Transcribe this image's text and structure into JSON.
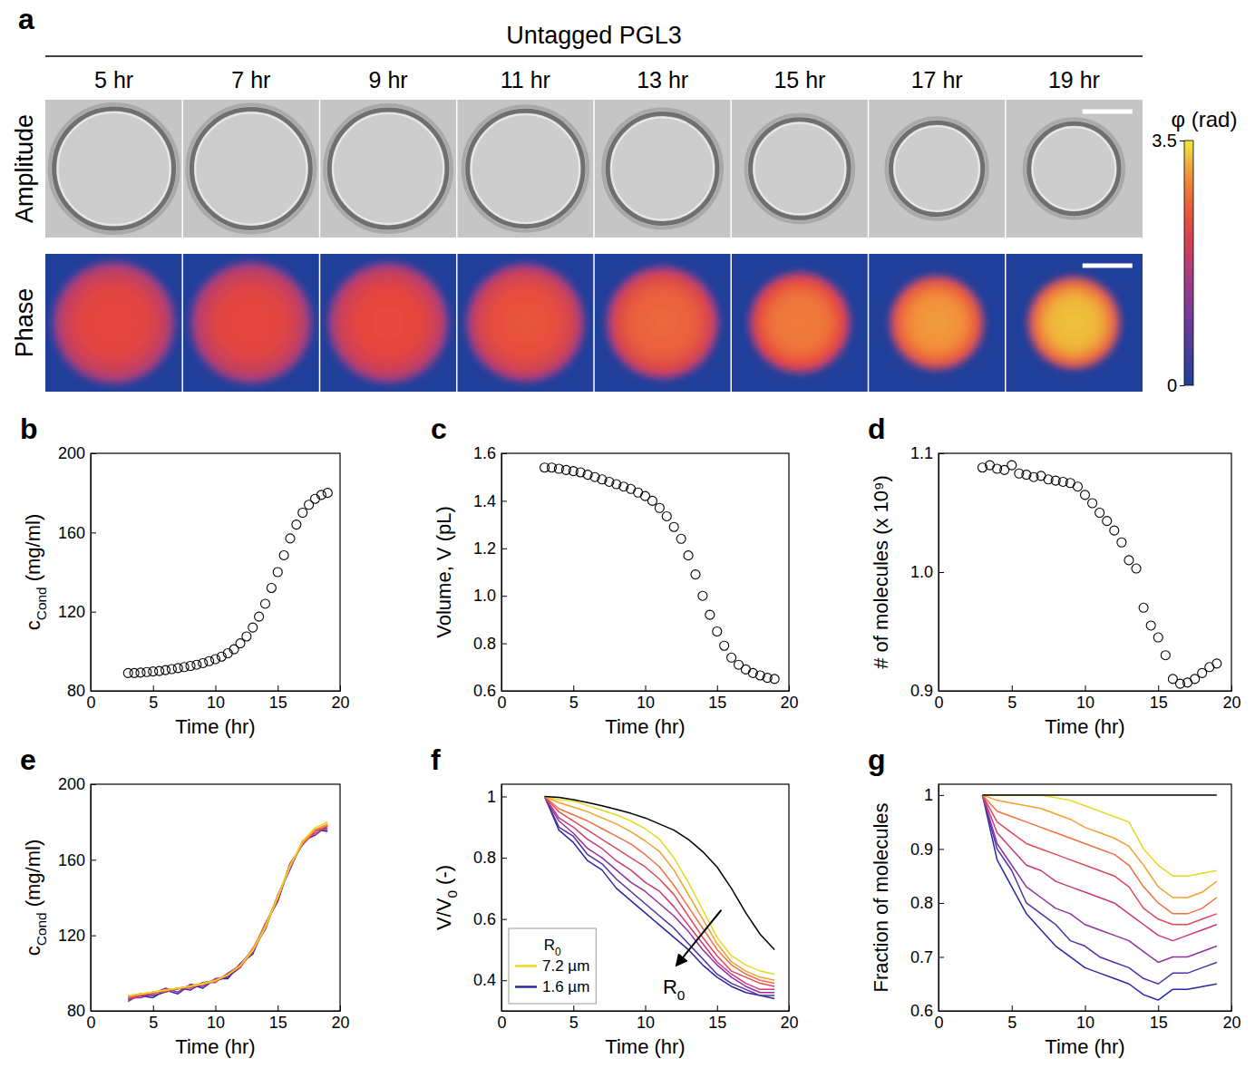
{
  "panel_a": {
    "panel": "a",
    "title": "Untagged PGL3",
    "rows": [
      "Amplitude",
      "Phase"
    ],
    "frames": [
      {
        "time": 5,
        "label": "5 hr",
        "phase_max": 2.3
      },
      {
        "time": 7,
        "label": "7 hr",
        "phase_max": 2.3
      },
      {
        "time": 9,
        "label": "9 hr",
        "phase_max": 2.35
      },
      {
        "time": 11,
        "label": "11 hr",
        "phase_max": 2.45
      },
      {
        "time": 13,
        "label": "13 hr",
        "phase_max": 2.65
      },
      {
        "time": 15,
        "label": "15 hr",
        "phase_max": 2.85
      },
      {
        "time": 17,
        "label": "17 hr",
        "phase_max": 3.1
      },
      {
        "time": 19,
        "label": "19 hr",
        "phase_max": 3.3
      }
    ],
    "colorbar": {
      "label": "φ (rad)",
      "range": [
        0,
        3.5
      ],
      "ticks": [
        0,
        3.5
      ]
    }
  },
  "chart_data": [
    {
      "panel": "b",
      "type": "scatter",
      "marker": "circle",
      "color": "#000000",
      "xlabel": "Time (hr)",
      "ylabel": [
        {
          "text": "c"
        },
        {
          "text": "Cond",
          "sub": true
        },
        {
          "text": " (mg/ml)"
        }
      ],
      "xlim": [
        0,
        20
      ],
      "xticks": [
        0,
        5,
        10,
        15,
        20
      ],
      "ylim": [
        80,
        200
      ],
      "yticks": [
        80,
        120,
        160,
        200
      ],
      "x": [
        3,
        3.5,
        4,
        4.5,
        5,
        5.5,
        6,
        6.5,
        7,
        7.5,
        8,
        8.5,
        9,
        9.5,
        10,
        10.5,
        11,
        11.5,
        12,
        12.5,
        13,
        13.5,
        14,
        14.5,
        15,
        15.5,
        16,
        16.5,
        17,
        17.5,
        18,
        18.5,
        19
      ],
      "values": [
        89,
        89,
        89.2,
        89.5,
        89.8,
        90,
        90.5,
        91,
        91.5,
        92,
        92.6,
        93.2,
        94,
        95,
        96,
        97.3,
        99,
        101,
        104,
        107.5,
        112,
        117.5,
        124,
        132,
        140,
        148.5,
        157,
        164,
        170,
        174,
        177,
        179,
        180
      ]
    },
    {
      "panel": "c",
      "type": "scatter",
      "marker": "circle",
      "color": "#000000",
      "xlabel": "Time (hr)",
      "ylabel": "Volume, V (pL)",
      "xlim": [
        0,
        20
      ],
      "xticks": [
        0,
        5,
        10,
        15,
        20
      ],
      "ylim": [
        0.6,
        1.6
      ],
      "yticks": [
        0.6,
        0.8,
        {
          "value": 1,
          "label": "1.0"
        },
        1.2,
        1.4,
        1.6
      ],
      "x": [
        3,
        3.5,
        4,
        4.5,
        5,
        5.5,
        6,
        6.5,
        7,
        7.5,
        8,
        8.5,
        9,
        9.5,
        10,
        10.5,
        11,
        11.5,
        12,
        12.5,
        13,
        13.5,
        14,
        14.5,
        15,
        15.5,
        16,
        16.5,
        17,
        17.5,
        18,
        18.5,
        19
      ],
      "values": [
        1.54,
        1.54,
        1.535,
        1.53,
        1.525,
        1.52,
        1.51,
        1.5,
        1.49,
        1.48,
        1.47,
        1.46,
        1.45,
        1.435,
        1.42,
        1.4,
        1.37,
        1.335,
        1.29,
        1.24,
        1.17,
        1.09,
        1.0,
        0.92,
        0.85,
        0.79,
        0.74,
        0.71,
        0.69,
        0.675,
        0.665,
        0.655,
        0.65
      ]
    },
    {
      "panel": "d",
      "type": "scatter",
      "marker": "circle",
      "color": "#000000",
      "xlabel": "Time (hr)",
      "ylabel": "# of molecules (x 10⁹)",
      "xlim": [
        0,
        20
      ],
      "xticks": [
        0,
        5,
        10,
        15,
        20
      ],
      "ylim": [
        0.9,
        1.1
      ],
      "yticks": [
        0.9,
        {
          "value": 1,
          "label": "1.0"
        },
        1.1
      ],
      "x": [
        3,
        3.5,
        4,
        4.5,
        5,
        5.5,
        6,
        6.5,
        7,
        7.5,
        8,
        8.5,
        9,
        9.5,
        10,
        10.5,
        11,
        11.5,
        12,
        12.5,
        13,
        13.5,
        14,
        14.5,
        15,
        15.5,
        16,
        16.5,
        17,
        17.5,
        18,
        18.5,
        19
      ],
      "values": [
        1.088,
        1.09,
        1.087,
        1.086,
        1.09,
        1.083,
        1.082,
        1.08,
        1.081,
        1.078,
        1.077,
        1.076,
        1.075,
        1.072,
        1.065,
        1.058,
        1.05,
        1.043,
        1.035,
        1.025,
        1.01,
        1.003,
        0.97,
        0.955,
        0.945,
        0.93,
        0.91,
        0.906,
        0.907,
        0.91,
        0.915,
        0.92,
        0.923
      ]
    },
    {
      "panel": "e",
      "type": "line",
      "xlabel": "Time (hr)",
      "ylabel": [
        {
          "text": "c"
        },
        {
          "text": "Cond",
          "sub": true
        },
        {
          "text": " (mg/ml)"
        }
      ],
      "xlim": [
        0,
        20
      ],
      "xticks": [
        0,
        5,
        10,
        15,
        20
      ],
      "ylim": [
        80,
        200
      ],
      "yticks": [
        80,
        120,
        160,
        200
      ],
      "x": [
        3,
        4,
        5,
        6,
        7,
        8,
        9,
        10,
        11,
        12,
        13,
        14,
        15,
        16,
        17,
        18,
        19
      ],
      "series": [
        {
          "color": "#2828a0",
          "values": [
            86,
            88,
            87,
            91,
            89,
            94,
            92,
            97,
            97,
            105,
            110,
            126,
            138,
            158,
            168,
            176,
            175
          ]
        },
        {
          "color": "#5030a8",
          "values": [
            85,
            89,
            88,
            90,
            92,
            91,
            95,
            96,
            98,
            103,
            113,
            123,
            141,
            155,
            170,
            173,
            178
          ]
        },
        {
          "color": "#9030a0",
          "values": [
            87,
            87,
            89,
            92,
            90,
            94,
            93,
            97,
            98,
            105,
            112,
            126,
            138,
            158,
            168,
            176,
            176
          ]
        },
        {
          "color": "#c83878",
          "values": [
            86,
            88,
            90,
            90,
            92,
            92,
            95,
            95,
            100,
            104,
            111,
            124,
            141,
            156,
            170,
            174,
            177
          ]
        },
        {
          "color": "#e04858",
          "values": [
            87,
            89,
            89,
            91,
            91.5,
            93.5,
            94,
            96,
            99.5,
            103,
            112,
            126,
            139,
            158,
            168,
            175,
            178
          ]
        },
        {
          "color": "#f07040",
          "values": [
            87,
            88.5,
            89.5,
            90.5,
            92,
            93,
            94.5,
            96.5,
            99,
            104,
            113,
            125,
            140,
            156,
            169,
            176,
            178
          ]
        },
        {
          "color": "#f4a030",
          "values": [
            88,
            89,
            90,
            91,
            92,
            93,
            94,
            96,
            99,
            104,
            112,
            125,
            141,
            157,
            169,
            176,
            179
          ]
        },
        {
          "color": "#e8d820",
          "values": [
            88,
            89,
            90,
            91,
            92,
            93,
            94.5,
            96,
            99,
            104,
            112,
            124,
            140,
            157,
            170,
            177,
            180
          ]
        }
      ]
    },
    {
      "panel": "f",
      "type": "line",
      "legend": "lower left",
      "legend_title": [
        {
          "text": "R"
        },
        {
          "text": "0",
          "sub": true
        }
      ],
      "annotations": [
        {
          "text": [
            {
              "text": "R"
            },
            {
              "text": "0",
              "sub": true
            }
          ]
        }
      ],
      "xlabel": "Time (hr)",
      "ylabel": [
        {
          "text": "V/V"
        },
        {
          "text": "0",
          "sub": true
        },
        {
          "text": " (-)"
        }
      ],
      "xlim": [
        0,
        20
      ],
      "xticks": [
        0,
        5,
        10,
        15,
        20
      ],
      "ylim": [
        0.3,
        1.04
      ],
      "yticks": [
        0.4,
        0.6,
        0.8,
        1
      ],
      "x": [
        3,
        4,
        5,
        6,
        7,
        8,
        9,
        10,
        11,
        12,
        13,
        14,
        15,
        16,
        17,
        18,
        19
      ],
      "series": [
        {
          "name": "1.6 µm",
          "color": "#2828a0",
          "values": [
            1,
            0.89,
            0.85,
            0.79,
            0.76,
            0.7,
            0.66,
            0.62,
            0.58,
            0.54,
            0.5,
            0.45,
            0.41,
            0.38,
            0.36,
            0.35,
            0.34
          ]
        },
        {
          "color": "#5030a8",
          "values": [
            1,
            0.9,
            0.87,
            0.81,
            0.78,
            0.73,
            0.69,
            0.65,
            0.61,
            0.57,
            0.52,
            0.47,
            0.42,
            0.39,
            0.37,
            0.35,
            0.35
          ]
        },
        {
          "color": "#9030a0",
          "values": [
            1,
            0.92,
            0.88,
            0.83,
            0.8,
            0.76,
            0.72,
            0.69,
            0.65,
            0.61,
            0.56,
            0.5,
            0.45,
            0.41,
            0.38,
            0.36,
            0.36
          ]
        },
        {
          "color": "#c83878",
          "values": [
            1,
            0.93,
            0.9,
            0.86,
            0.83,
            0.79,
            0.76,
            0.72,
            0.69,
            0.64,
            0.58,
            0.52,
            0.46,
            0.42,
            0.39,
            0.37,
            0.37
          ]
        },
        {
          "color": "#e04858",
          "values": [
            1,
            0.95,
            0.92,
            0.89,
            0.86,
            0.83,
            0.8,
            0.77,
            0.73,
            0.68,
            0.61,
            0.54,
            0.48,
            0.43,
            0.41,
            0.39,
            0.38
          ]
        },
        {
          "color": "#f07040",
          "values": [
            1,
            0.96,
            0.94,
            0.92,
            0.895,
            0.87,
            0.845,
            0.81,
            0.77,
            0.71,
            0.64,
            0.57,
            0.5,
            0.45,
            0.42,
            0.4,
            0.39
          ]
        },
        {
          "color": "#f4a030",
          "values": [
            1,
            0.98,
            0.965,
            0.95,
            0.93,
            0.91,
            0.885,
            0.855,
            0.82,
            0.76,
            0.68,
            0.6,
            0.52,
            0.46,
            0.43,
            0.41,
            0.4
          ]
        },
        {
          "name": "7.2 µm",
          "color": "#e8d820",
          "values": [
            1,
            0.99,
            0.985,
            0.97,
            0.955,
            0.94,
            0.92,
            0.895,
            0.86,
            0.8,
            0.72,
            0.63,
            0.54,
            0.48,
            0.45,
            0.43,
            0.42
          ]
        },
        {
          "color": "#000000",
          "values": [
            1,
            0.997,
            0.99,
            0.98,
            0.97,
            0.958,
            0.945,
            0.93,
            0.91,
            0.89,
            0.86,
            0.82,
            0.77,
            0.7,
            0.62,
            0.55,
            0.5
          ]
        }
      ]
    },
    {
      "panel": "g",
      "type": "line",
      "xlabel": "Time (hr)",
      "ylabel": "Fraction of molecules",
      "xlim": [
        0,
        20
      ],
      "xticks": [
        0,
        5,
        10,
        15,
        20
      ],
      "ylim": [
        0.6,
        1.02
      ],
      "yticks": [
        0.6,
        0.7,
        0.8,
        0.9,
        1
      ],
      "x": [
        3,
        4,
        5,
        6,
        7,
        8,
        9,
        10,
        11,
        12,
        13,
        14,
        15,
        16,
        17,
        18,
        19
      ],
      "series": [
        {
          "color": "#2828a0",
          "values": [
            1,
            0.88,
            0.83,
            0.78,
            0.75,
            0.72,
            0.7,
            0.68,
            0.67,
            0.66,
            0.65,
            0.63,
            0.62,
            0.64,
            0.64,
            0.645,
            0.65
          ]
        },
        {
          "color": "#5030a8",
          "values": [
            1,
            0.9,
            0.86,
            0.8,
            0.78,
            0.76,
            0.73,
            0.72,
            0.7,
            0.69,
            0.68,
            0.66,
            0.65,
            0.67,
            0.67,
            0.68,
            0.69
          ]
        },
        {
          "color": "#9030a0",
          "values": [
            1,
            0.91,
            0.87,
            0.83,
            0.81,
            0.79,
            0.78,
            0.76,
            0.75,
            0.74,
            0.73,
            0.71,
            0.69,
            0.7,
            0.7,
            0.71,
            0.72
          ]
        },
        {
          "color": "#c83878",
          "values": [
            1,
            0.93,
            0.9,
            0.87,
            0.86,
            0.84,
            0.83,
            0.82,
            0.81,
            0.8,
            0.78,
            0.76,
            0.74,
            0.73,
            0.74,
            0.75,
            0.76
          ]
        },
        {
          "color": "#e04858",
          "values": [
            1,
            0.95,
            0.93,
            0.91,
            0.9,
            0.89,
            0.88,
            0.87,
            0.86,
            0.85,
            0.83,
            0.79,
            0.77,
            0.76,
            0.76,
            0.77,
            0.78
          ]
        },
        {
          "color": "#f07040",
          "values": [
            1,
            0.97,
            0.96,
            0.95,
            0.94,
            0.93,
            0.92,
            0.91,
            0.9,
            0.89,
            0.87,
            0.83,
            0.8,
            0.78,
            0.78,
            0.79,
            0.81
          ]
        },
        {
          "color": "#f4a030",
          "values": [
            1,
            0.99,
            0.985,
            0.98,
            0.975,
            0.965,
            0.955,
            0.94,
            0.93,
            0.92,
            0.905,
            0.87,
            0.83,
            0.81,
            0.81,
            0.82,
            0.84
          ]
        },
        {
          "color": "#e8d820",
          "values": [
            1,
            1,
            1,
            1,
            1,
            0.995,
            0.99,
            0.98,
            0.97,
            0.96,
            0.95,
            0.9,
            0.87,
            0.85,
            0.85,
            0.855,
            0.86
          ]
        },
        {
          "color": "#000000",
          "values": [
            1,
            1,
            1,
            1,
            1,
            1,
            1,
            1,
            1,
            1,
            1,
            1,
            1,
            1,
            1,
            1,
            1
          ]
        }
      ]
    }
  ]
}
